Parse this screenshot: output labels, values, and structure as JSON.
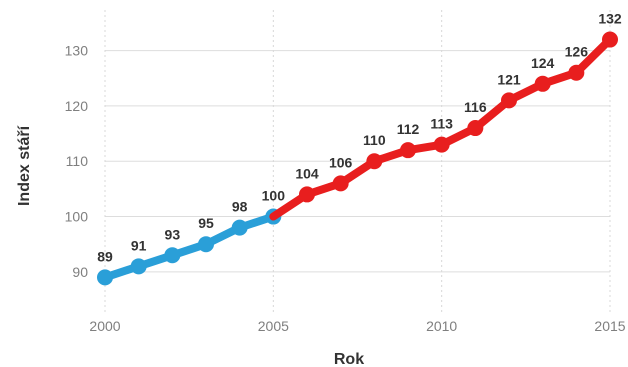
{
  "chart_data": {
    "type": "line",
    "title": "",
    "xlabel": "Rok",
    "ylabel": "Index stáří",
    "grid": true,
    "x": [
      2000,
      2001,
      2002,
      2003,
      2004,
      2005,
      2006,
      2007,
      2008,
      2009,
      2010,
      2011,
      2012,
      2013,
      2014,
      2015
    ],
    "series": [
      {
        "color": "#2a9fd8",
        "x": [
          2000,
          2001,
          2002,
          2003,
          2004,
          2005
        ],
        "values": [
          89,
          91,
          93,
          95,
          98,
          100
        ],
        "labels": [
          "89",
          "91",
          "93",
          "95",
          "98",
          "100"
        ]
      },
      {
        "color": "#e81e1e",
        "x": [
          2005,
          2006,
          2007,
          2008,
          2009,
          2010,
          2011,
          2012,
          2013,
          2014,
          2015
        ],
        "values": [
          100,
          104,
          106,
          110,
          112,
          113,
          116,
          121,
          124,
          126,
          132
        ],
        "labels": [
          "",
          "104",
          "106",
          "110",
          "112",
          "113",
          "116",
          "121",
          "124",
          "126",
          "132"
        ]
      }
    ],
    "xlim": [
      2000,
      2015
    ],
    "ylim": [
      86,
      133
    ],
    "xticks": [
      "2000",
      "2005",
      "2010",
      "2015"
    ],
    "yticks": [
      "90",
      "100",
      "110",
      "120",
      "130"
    ]
  }
}
